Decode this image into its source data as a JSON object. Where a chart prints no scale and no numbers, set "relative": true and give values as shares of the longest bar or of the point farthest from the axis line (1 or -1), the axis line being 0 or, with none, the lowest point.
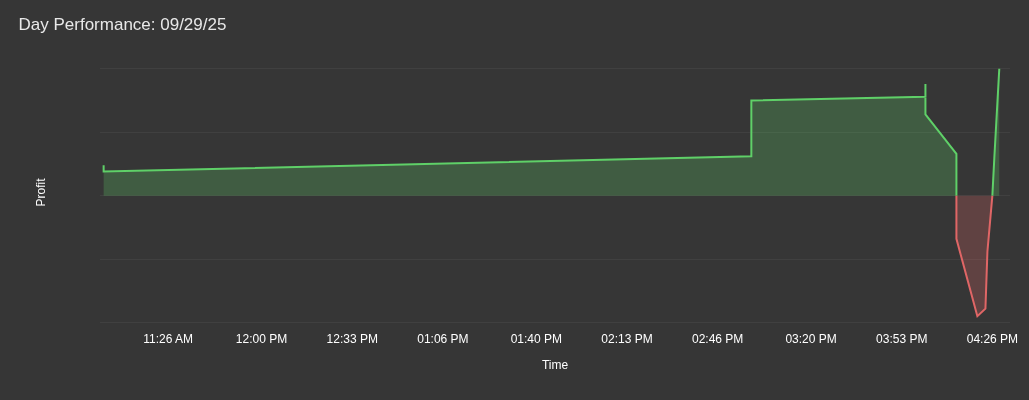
{
  "chart_data": {
    "type": "area",
    "title": "Day Performance: 09/29/25",
    "xlabel": "Time",
    "ylabel": "Profit",
    "relative": true,
    "grid": "y",
    "marker": "none",
    "line_style": "solid",
    "xlim": [
      11.02,
      16.54
    ],
    "xticks": [
      {
        "value": 11.4333,
        "label": "11:26 AM"
      },
      {
        "value": 12.0,
        "label": "12:00 PM"
      },
      {
        "value": 12.55,
        "label": "12:33 PM"
      },
      {
        "value": 13.1,
        "label": "01:06 PM"
      },
      {
        "value": 13.6667,
        "label": "01:40 PM"
      },
      {
        "value": 14.2167,
        "label": "02:13 PM"
      },
      {
        "value": 14.7667,
        "label": "02:46 PM"
      },
      {
        "value": 15.3333,
        "label": "03:20 PM"
      },
      {
        "value": 15.8833,
        "label": "03:53 PM"
      },
      {
        "value": 16.4333,
        "label": "04:26 PM"
      }
    ],
    "series": [
      {
        "color": "#5fd068",
        "x": [
          11.042,
          11.042,
          14.971,
          14.971,
          16.027,
          16.027,
          16.027,
          16.215,
          16.215
        ],
        "values": [
          0.24,
          0.19,
          0.31,
          0.75,
          0.78,
          0.88,
          0.64,
          0.33,
          0
        ]
      },
      {
        "color": "#e06666",
        "x": [
          16.215,
          16.215,
          16.342,
          16.391,
          16.403,
          16.433
        ],
        "values": [
          0,
          -0.34,
          -0.95,
          -0.89,
          -0.44,
          0
        ]
      },
      {
        "color": "#5fd068",
        "x": [
          16.433,
          16.445,
          16.475
        ],
        "values": [
          0,
          0.3,
          1.0
        ]
      }
    ]
  }
}
